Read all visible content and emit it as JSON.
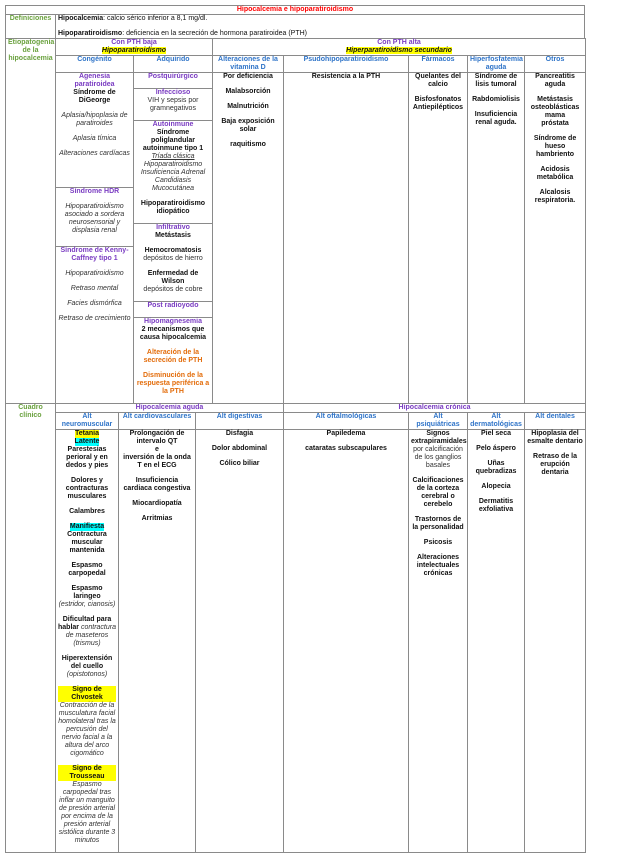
{
  "title": "Hipocalcemia e hipoparatiroidismo",
  "colors": {
    "title": "#ff0000",
    "section_label": "#6aa13e",
    "group": "#7a3cc2",
    "column_header": "#2f74c8",
    "warning": "#e36c0a",
    "highlight_yellow": "#ffff00",
    "highlight_cyan": "#00ffff"
  },
  "definiciones": {
    "label": "Definiciones",
    "hipocalcemia_term": "Hipocalcemia",
    "hipocalcemia_text": ": calcio sérico inferior a 8,1 mg/dl.",
    "hipopara_term": "Hipoparatiroidismo",
    "hipopara_text": ": deficiencia en la secreción de hormona paratiroidea (PTH)"
  },
  "etiopatogenia": {
    "label": "Etiopatogenia de la hipocalcemia",
    "groups": [
      {
        "title": "Con PTH baja",
        "subtitle": "Hipoparatiroidismo"
      },
      {
        "title": "Con PTH alta",
        "subtitle": "Hiperparatiroidismo secundario"
      }
    ],
    "columns": [
      "Congénito",
      "Adquirido",
      "Alteraciones de la vitamina D",
      "Psudohipoparatiroidismo",
      "Fármacos",
      "Hiperfosfatemia aguda",
      "Otros"
    ],
    "congenito": [
      [
        [
          {
            "t": "Agenesia paratiroidea",
            "s": "p"
          },
          {
            "t": "Síndrome de DiGeorge",
            "s": "b"
          }
        ],
        [
          {
            "t": "Aplasia/hipoplasia de paratiroides",
            "s": "i"
          }
        ],
        [
          {
            "t": "Aplasia tímica",
            "s": "i"
          }
        ],
        [
          {
            "t": "Alteraciones cardíacas",
            "s": "i"
          }
        ]
      ],
      [
        [
          {
            "t": "Síndrome HDR",
            "s": "p"
          }
        ],
        [
          {
            "t": "Hipoparatiroidismo asociado a sordera neurosensorial y displasia renal",
            "s": "i"
          }
        ]
      ],
      [
        [
          {
            "t": "Síndrome de Kenny-Caffney tipo 1",
            "s": "p"
          }
        ],
        [
          {
            "t": "Hipoparatiroidismo",
            "s": "i"
          }
        ],
        [
          {
            "t": "Retraso mental",
            "s": "i"
          }
        ],
        [
          {
            "t": "Facies dismórfica",
            "s": "i"
          }
        ],
        [
          {
            "t": "Retraso de crecimiento",
            "s": "i"
          }
        ]
      ]
    ],
    "adquirido": [
      [
        [
          {
            "t": "Postquirúrgico",
            "s": "p"
          }
        ]
      ],
      [
        [
          {
            "t": "Infeccioso",
            "s": "p"
          },
          {
            "t": "VIH y sepsis por gramnegativos",
            "s": "n"
          }
        ]
      ],
      [
        [
          {
            "t": "Autoinmune",
            "s": "p"
          },
          {
            "t": "Síndrome poliglandular autoinmune tipo 1",
            "s": "b"
          },
          {
            "t": "Tríada clásica",
            "s": "i u"
          },
          {
            "t": "Hipoparatiroidismo",
            "s": "i"
          },
          {
            "t": "Insuficiencia Adrenal",
            "s": "i"
          },
          {
            "t": "Candidiasis",
            "s": "i"
          },
          {
            "t": "Mucocutánea",
            "s": "i"
          }
        ],
        [
          {
            "t": "Hipoparatiroidismo idiopático",
            "s": "b"
          }
        ]
      ],
      [
        [
          {
            "t": "Infiltrativo",
            "s": "p"
          },
          {
            "t": "Metástasis",
            "s": "b"
          }
        ],
        [
          {
            "t": "Hemocromatosis",
            "s": "b"
          },
          {
            "t": "depósitos de hierro",
            "s": "n"
          }
        ],
        [
          {
            "t": "Enfermedad de Wilson",
            "s": "b"
          },
          {
            "t": "depósitos de cobre",
            "s": "n"
          }
        ]
      ],
      [
        [
          {
            "t": "Post radioyodo",
            "s": "p"
          }
        ]
      ],
      [
        [
          {
            "t": "Hipomagnesemia",
            "s": "p"
          },
          {
            "t": "2 mecanismos que causa hipocalcemia",
            "s": "b"
          }
        ],
        [
          {
            "t": "Alteración de la secreción de PTH",
            "s": "o"
          }
        ],
        [
          {
            "t": "Disminución de la respuesta periférica a la PTH",
            "s": "o"
          }
        ]
      ]
    ],
    "vitamina_d": [
      [
        {
          "t": "Por deficiencia",
          "s": "b"
        }
      ],
      [
        {
          "t": "Malabsorción",
          "s": "b"
        }
      ],
      [
        {
          "t": "Malnutrición",
          "s": "b"
        }
      ],
      [
        {
          "t": "Baja exposición solar",
          "s": "b"
        }
      ],
      [
        {
          "t": "raquitismo",
          "s": "b"
        }
      ]
    ],
    "pseudo": [
      [
        {
          "t": "Resistencia a la PTH",
          "s": "b"
        }
      ]
    ],
    "farmacos": [
      [
        {
          "t": "Quelantes del calcio",
          "s": "b"
        }
      ],
      [
        {
          "t": "Bisfosfonatos",
          "s": "b"
        },
        {
          "t": "Antiepilépticos",
          "s": "b"
        }
      ]
    ],
    "hiperfosfatemia": [
      [
        {
          "t": "Síndrome de lisis tumoral",
          "s": "b"
        }
      ],
      [
        {
          "t": "Rabdomiolisis",
          "s": "b"
        }
      ],
      [
        {
          "t": "Insuficiencia renal aguda.",
          "s": "b"
        }
      ]
    ],
    "otros": [
      [
        {
          "t": "Pancreatitis aguda",
          "s": "b"
        }
      ],
      [
        {
          "t": "Metástasis osteoblásticas",
          "s": "b"
        },
        {
          "t": "mama",
          "s": "b"
        },
        {
          "t": "próstata",
          "s": "b"
        }
      ],
      [
        {
          "t": "Síndrome de hueso hambriento",
          "s": "b"
        }
      ],
      [
        {
          "t": "Acidosis metabólica",
          "s": "b"
        }
      ],
      [
        {
          "t": "Alcalosis respiratoria.",
          "s": "b"
        }
      ]
    ]
  },
  "cuadro": {
    "label": "Cuadro clínico",
    "groups": [
      "Hipocalcemia aguda",
      "Hipocalcemia crónica"
    ],
    "columns": [
      "Alt neuromuscular",
      "Alt cardiovasculares",
      "Alt digestivas",
      "Alt oftalmológicas",
      "Alt psiquiátricas",
      "Alt dermatológicas",
      "Alt dentales"
    ],
    "cells": [
      [
        [
          {
            "t": "Tetania",
            "s": "hy"
          },
          {
            "t": "Latente",
            "s": "hc"
          },
          {
            "t": "Parestesias perioral y en dedos y pies",
            "s": "b"
          }
        ],
        [
          {
            "t": "Dolores y contracturas musculares",
            "s": "b"
          }
        ],
        [
          {
            "t": "Calambres",
            "s": "b"
          }
        ],
        [
          {
            "t": "Manifiesta",
            "s": "hc"
          },
          {
            "t": "Contractura muscular mantenida",
            "s": "b"
          }
        ],
        [
          {
            "t": "Espasmo carpopedal",
            "s": "b"
          }
        ],
        [
          {
            "t": "Espasmo laringeo",
            "s": "b"
          },
          {
            "t": "(estridor, cianosis)",
            "s": "i"
          }
        ],
        [
          {
            "t": "Dificultad para hablar",
            "s": "b in"
          },
          {
            "t": " contractura de maseteros",
            "s": "i in"
          },
          {
            "t": "(trismus)",
            "s": "i"
          }
        ],
        [
          {
            "t": "Hiperextensión del cuello",
            "s": "b"
          },
          {
            "t": "(opistotonos)",
            "s": "i"
          }
        ],
        [
          {
            "t": "Signo de Chvostek",
            "s": "hy"
          },
          {
            "t": "Contracción de la musculatura facial homolateral tras la percusión del nervio facial a la altura del arco cigomático",
            "s": "i"
          }
        ],
        [
          {
            "t": "Signo de Trousseau",
            "s": "hy"
          },
          {
            "t": "Espasmo carpopedal tras inflar un manguito de presión arterial por encima de la presión arterial sistólica durante 3 minutos",
            "s": "i"
          }
        ]
      ],
      [
        [
          {
            "t": "Prolongación de intervalo QT",
            "s": "b"
          },
          {
            "t": "e",
            "s": "b"
          },
          {
            "t": "inversión de la onda T en el ECG",
            "s": "b"
          }
        ],
        [
          {
            "t": "Insuficiencia cardiaca congestiva",
            "s": "b"
          }
        ],
        [
          {
            "t": "Miocardiopatía",
            "s": "b"
          }
        ],
        [
          {
            "t": "Arritmias",
            "s": "b"
          }
        ]
      ],
      [
        [
          {
            "t": "Disfagia",
            "s": "b"
          }
        ],
        [
          {
            "t": "Dolor abdominal",
            "s": "b"
          }
        ],
        [
          {
            "t": "Cólico biliar",
            "s": "b"
          }
        ]
      ],
      [
        [
          {
            "t": "Papiledema",
            "s": "b"
          }
        ],
        [
          {
            "t": "cataratas subscapulares",
            "s": "b"
          }
        ]
      ],
      [
        [
          {
            "t": "Signos extrapiramidales",
            "s": "b"
          },
          {
            "t": "por calcificación de los ganglios basales",
            "s": "n"
          }
        ],
        [
          {
            "t": "Calcificaciones de la corteza cerebral o cerebelo",
            "s": "b"
          }
        ],
        [
          {
            "t": "Trastornos de la personalidad",
            "s": "b"
          }
        ],
        [
          {
            "t": "Psicosis",
            "s": "b"
          }
        ],
        [
          {
            "t": "Alteraciones intelectuales crónicas",
            "s": "b"
          }
        ]
      ],
      [
        [
          {
            "t": "Piel seca",
            "s": "b"
          }
        ],
        [
          {
            "t": "Pelo áspero",
            "s": "b"
          }
        ],
        [
          {
            "t": "Uñas quebradizas",
            "s": "b"
          }
        ],
        [
          {
            "t": "Alopecia",
            "s": "b"
          }
        ],
        [
          {
            "t": "Dermatitis exfoliativa",
            "s": "b"
          }
        ]
      ],
      [
        [
          {
            "t": "Hipoplasia del esmalte dentario",
            "s": "b"
          }
        ],
        [
          {
            "t": "Retraso de la erupción dentaria",
            "s": "b"
          }
        ]
      ]
    ]
  }
}
